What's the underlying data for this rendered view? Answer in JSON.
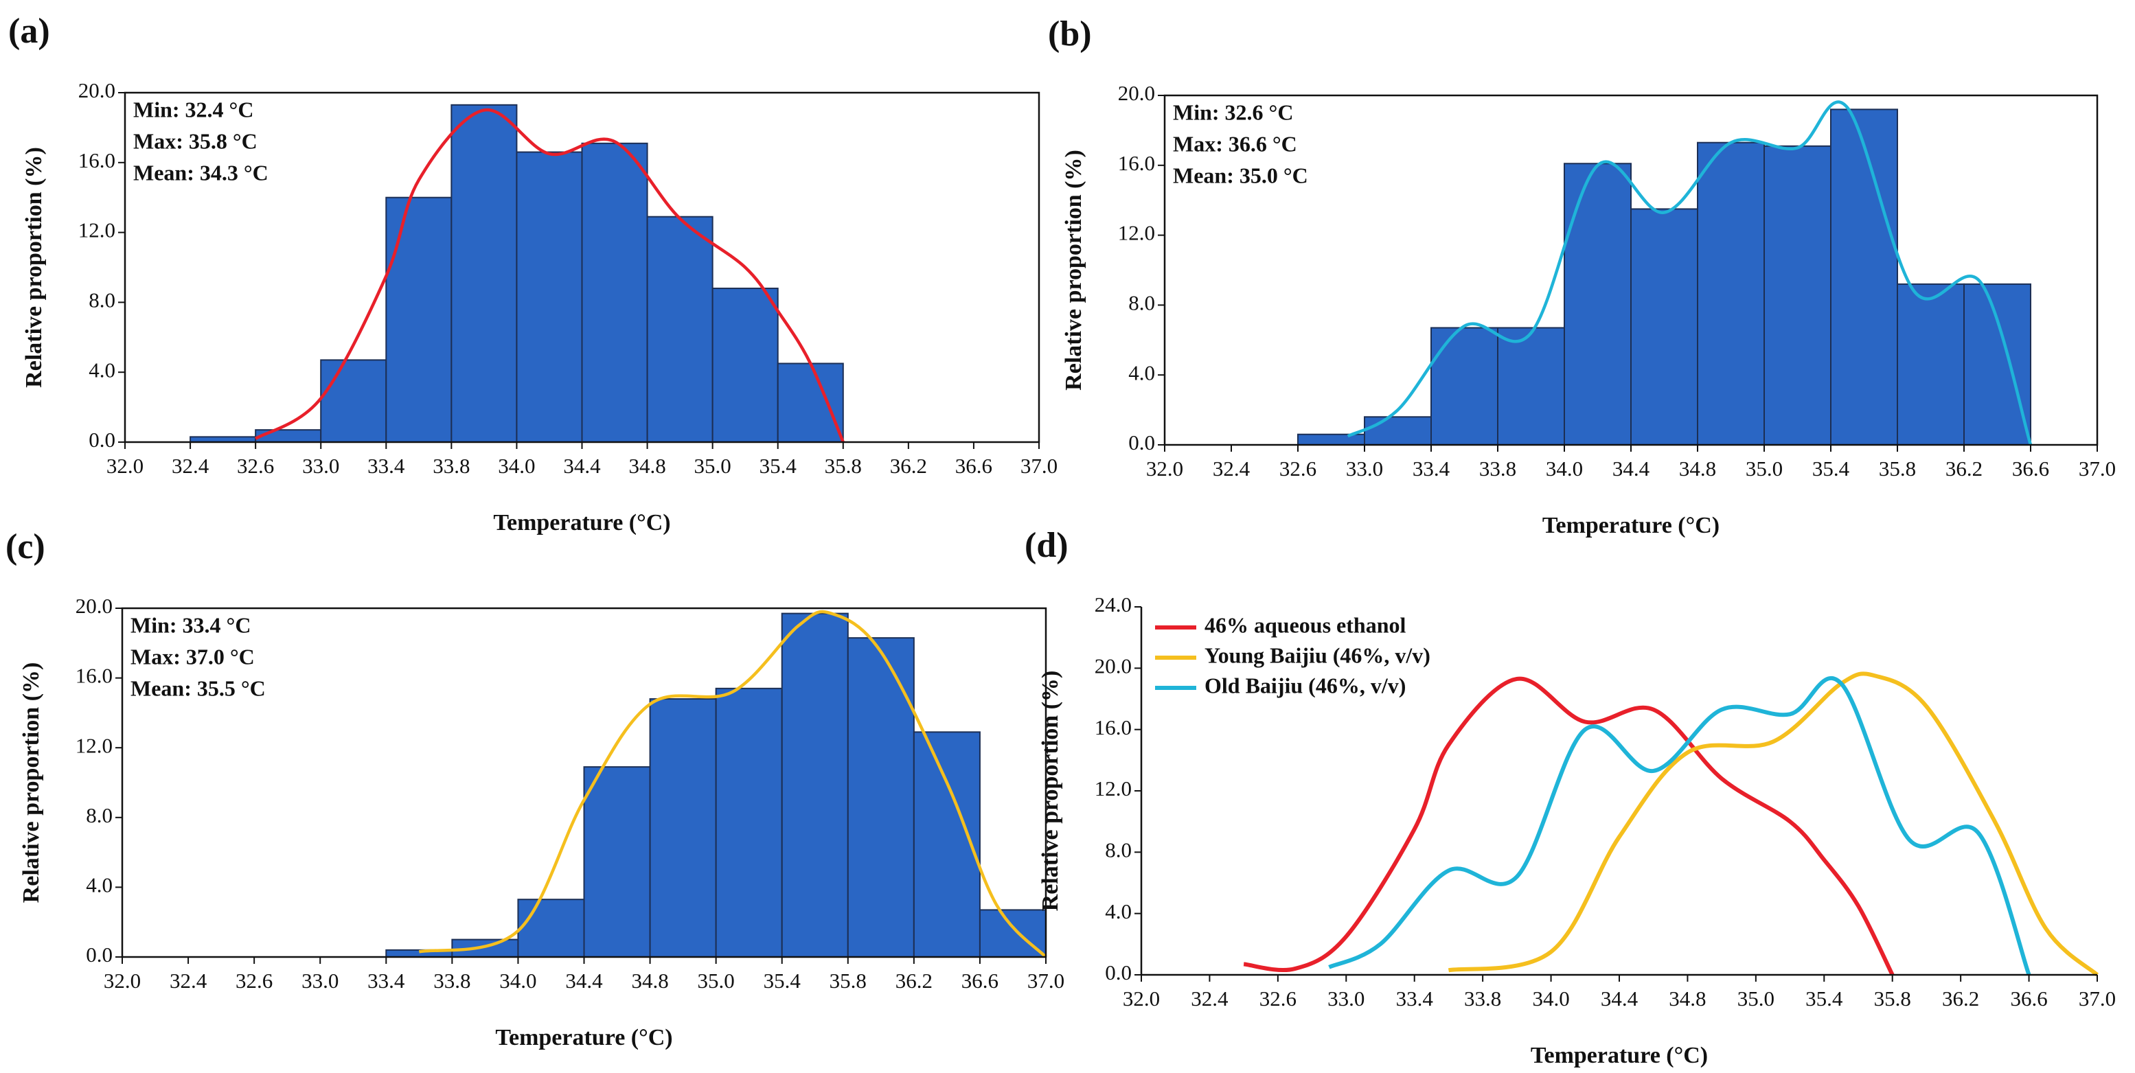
{
  "chart_data": [
    {
      "type": "histogram",
      "panel_label": "(a)",
      "xlabel": "Temperature (°C)",
      "ylabel": "Relative proportion (%)",
      "annotations": [
        "Min: 32.4 °C",
        "Max: 35.8 °C",
        "Mean: 34.3 °C"
      ],
      "xlim": [
        {
          "value": 32.0,
          "label": "32.0"
        },
        {
          "value": 37.0,
          "label": "37.0"
        }
      ],
      "xticks": [
        {
          "value": 32.0,
          "label": "32.0"
        },
        32.4,
        32.6,
        {
          "value": 33.0,
          "label": "33.0"
        },
        33.4,
        33.8,
        {
          "value": 34.0,
          "label": "34.0"
        },
        34.4,
        34.8,
        {
          "value": 35.0,
          "label": "35.0"
        },
        35.4,
        35.8,
        36.2,
        36.6,
        {
          "value": 37.0,
          "label": "37.0"
        }
      ],
      "ylim": [
        0,
        20
      ],
      "yticks": [
        {
          "value": 0,
          "label": "0.0"
        },
        {
          "value": 4,
          "label": "4.0"
        },
        {
          "value": 8,
          "label": "8.0"
        },
        {
          "value": 12,
          "label": "12.0"
        },
        {
          "value": 16,
          "label": "16.0"
        },
        {
          "value": 20,
          "label": "20.0"
        }
      ],
      "bins": [
        32.4,
        32.6,
        33.0,
        33.4,
        33.8,
        34.0,
        34.4,
        34.8,
        35.0,
        35.4,
        35.8
      ],
      "values": [
        0.3,
        0.7,
        4.7,
        14.0,
        19.3,
        16.6,
        17.1,
        12.9,
        8.8,
        4.5
      ],
      "color": "#2a66c4",
      "curve": {
        "color": "#e8202a",
        "x": [
          32.6,
          33.0,
          33.4,
          33.6,
          33.9,
          34.2,
          34.6,
          34.9,
          35.2,
          35.4,
          35.6,
          35.8
        ],
        "values": [
          0.2,
          2.5,
          9.5,
          15.0,
          19.0,
          16.5,
          17.2,
          12.8,
          10.0,
          7.5,
          4.5,
          0
        ]
      }
    },
    {
      "type": "histogram",
      "panel_label": "(b)",
      "xlabel": "Temperature (°C)",
      "ylabel": "Relative proportion (%)",
      "annotations": [
        "Min: 32.6 °C",
        "Max: 36.6 °C",
        "Mean: 35.0 °C"
      ],
      "xlim": [
        {
          "value": 32.0,
          "label": "32.0"
        },
        {
          "value": 37.0,
          "label": "37.0"
        }
      ],
      "xticks": [
        {
          "value": 32.0,
          "label": "32.0"
        },
        32.4,
        32.6,
        {
          "value": 33.0,
          "label": "33.0"
        },
        33.4,
        33.8,
        {
          "value": 34.0,
          "label": "34.0"
        },
        34.4,
        34.8,
        {
          "value": 35.0,
          "label": "35.0"
        },
        35.4,
        35.8,
        36.2,
        36.6,
        {
          "value": 37.0,
          "label": "37.0"
        }
      ],
      "ylim": [
        0,
        20
      ],
      "yticks": [
        {
          "value": 0,
          "label": "0.0"
        },
        {
          "value": 4,
          "label": "4.0"
        },
        {
          "value": 8,
          "label": "8.0"
        },
        {
          "value": 12,
          "label": "12.0"
        },
        {
          "value": 16,
          "label": "16.0"
        },
        {
          "value": 20,
          "label": "20.0"
        }
      ],
      "bins": [
        32.6,
        33.0,
        33.4,
        33.8,
        34.0,
        34.4,
        34.8,
        35.0,
        35.4,
        35.8,
        36.2,
        36.6
      ],
      "values": [
        0.6,
        1.6,
        6.7,
        6.7,
        16.1,
        13.5,
        17.3,
        17.1,
        19.2,
        9.2,
        9.2
      ],
      "color": "#2a66c4",
      "curve": {
        "color": "#1fb4d8",
        "x": [
          32.9,
          33.2,
          33.6,
          33.9,
          34.2,
          34.6,
          34.9,
          35.2,
          35.5,
          35.9,
          36.3,
          36.6
        ],
        "values": [
          0.5,
          2.0,
          6.8,
          6.4,
          16.0,
          13.3,
          17.3,
          17.0,
          19.3,
          8.8,
          9.3,
          0
        ]
      }
    },
    {
      "type": "histogram",
      "panel_label": "(c)",
      "xlabel": "Temperature (°C)",
      "ylabel": "Relative proportion (%)",
      "annotations": [
        "Min: 33.4 °C",
        "Max: 37.0 °C",
        "Mean: 35.5 °C"
      ],
      "xlim": [
        {
          "value": 32.0,
          "label": "32.0"
        },
        {
          "value": 37.0,
          "label": "37.0"
        }
      ],
      "xticks": [
        {
          "value": 32.0,
          "label": "32.0"
        },
        32.4,
        32.6,
        {
          "value": 33.0,
          "label": "33.0"
        },
        33.4,
        33.8,
        {
          "value": 34.0,
          "label": "34.0"
        },
        34.4,
        34.8,
        {
          "value": 35.0,
          "label": "35.0"
        },
        35.4,
        35.8,
        36.2,
        36.6,
        {
          "value": 37.0,
          "label": "37.0"
        }
      ],
      "ylim": [
        0,
        20
      ],
      "yticks": [
        {
          "value": 0,
          "label": "0.0"
        },
        {
          "value": 4,
          "label": "4.0"
        },
        {
          "value": 8,
          "label": "8.0"
        },
        {
          "value": 12,
          "label": "12.0"
        },
        {
          "value": 16,
          "label": "16.0"
        },
        {
          "value": 20,
          "label": "20.0"
        }
      ],
      "bins": [
        33.4,
        33.8,
        34.0,
        34.4,
        34.8,
        35.0,
        35.4,
        35.8,
        36.2,
        36.6,
        37.0
      ],
      "values": [
        0.4,
        1.0,
        3.3,
        10.9,
        14.8,
        15.4,
        19.7,
        18.3,
        12.9,
        2.7
      ],
      "color": "#2a66c4",
      "curve": {
        "color": "#f5bf1e",
        "x": [
          33.6,
          34.0,
          34.4,
          34.8,
          35.1,
          35.5,
          35.7,
          36.0,
          36.4,
          36.7,
          37.0
        ],
        "values": [
          0.3,
          1.5,
          9.0,
          14.5,
          15.2,
          19.0,
          19.7,
          17.5,
          10.0,
          3.0,
          0
        ]
      }
    },
    {
      "type": "line",
      "panel_label": "(d)",
      "xlabel": "Temperature (°C)",
      "ylabel": "Relative proportion (%)",
      "legend": "upper left",
      "xlim": [
        {
          "value": 32.0,
          "label": "32.0"
        },
        {
          "value": 37.0,
          "label": "37.0"
        }
      ],
      "xticks": [
        {
          "value": 32.0,
          "label": "32.0"
        },
        32.4,
        32.6,
        {
          "value": 33.0,
          "label": "33.0"
        },
        33.4,
        33.8,
        {
          "value": 34.0,
          "label": "34.0"
        },
        34.4,
        34.8,
        {
          "value": 35.0,
          "label": "35.0"
        },
        35.4,
        35.8,
        36.2,
        36.6,
        {
          "value": 37.0,
          "label": "37.0"
        }
      ],
      "ylim": [
        0,
        24
      ],
      "yticks": [
        {
          "value": 0,
          "label": "0.0"
        },
        {
          "value": 4,
          "label": "4.0"
        },
        {
          "value": 8,
          "label": "8.0"
        },
        {
          "value": 12,
          "label": "12.0"
        },
        {
          "value": 16,
          "label": "16.0"
        },
        {
          "value": 20,
          "label": "20.0"
        },
        {
          "value": 24,
          "label": "24.0"
        }
      ],
      "series": [
        {
          "name": "46% aqueous ethanol",
          "color": "#e8202a",
          "x": [
            32.5,
            32.7,
            33.0,
            33.4,
            33.6,
            33.9,
            34.2,
            34.6,
            34.9,
            35.2,
            35.4,
            35.6,
            35.8
          ],
          "values": [
            0.7,
            0.4,
            2.5,
            9.5,
            15.0,
            19.3,
            16.5,
            17.3,
            12.8,
            10.0,
            7.5,
            4.5,
            0
          ]
        },
        {
          "name": "Young Baijiu (46%, v/v)",
          "color": "#f5bf1e",
          "x": [
            33.6,
            34.0,
            34.4,
            34.8,
            35.1,
            35.5,
            35.7,
            36.0,
            36.4,
            36.7,
            37.0
          ],
          "values": [
            0.3,
            1.5,
            9.0,
            14.5,
            15.2,
            19.0,
            19.5,
            17.5,
            10.0,
            3.0,
            0
          ]
        },
        {
          "name": "Old Baijiu (46%, v/v)",
          "color": "#1fb4d8",
          "x": [
            32.9,
            33.2,
            33.6,
            33.9,
            34.2,
            34.6,
            34.9,
            35.2,
            35.5,
            35.9,
            36.3,
            36.6
          ],
          "values": [
            0.5,
            2.0,
            6.8,
            6.4,
            16.0,
            13.3,
            17.3,
            17.0,
            19.0,
            8.8,
            9.3,
            0
          ]
        }
      ]
    }
  ]
}
